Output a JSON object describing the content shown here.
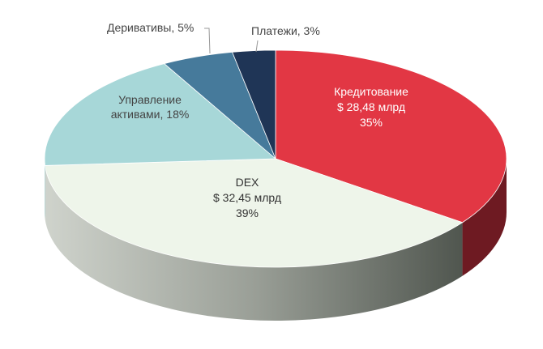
{
  "chart_data": {
    "type": "pie",
    "style": "3d",
    "start": "top, clockwise",
    "slices": [
      {
        "label": "Кредитование",
        "amount": "$ 28,48 млрд",
        "percent": "35%",
        "value": 35,
        "color": "#e23744",
        "side_color": "#6e1a22",
        "label_color": "#ffffff"
      },
      {
        "label": "DEX",
        "amount": "$ 32,45 млрд",
        "percent": "39%",
        "value": 39,
        "color": "#eef5ea",
        "side_color": "#8a8f88",
        "label_color": "#333333"
      },
      {
        "label": "Управление активами, 18%",
        "lines": [
          "Управление",
          "активами, 18%"
        ],
        "value": 18,
        "color": "#a7d7d8",
        "label_color": "#444444"
      },
      {
        "label": "Деривативы, 5%",
        "value": 5,
        "color": "#467a9b",
        "label_color": "#444444"
      },
      {
        "label": "Платежи, 3%",
        "value": 3,
        "color": "#1f3556",
        "label_color": "#444444"
      }
    ]
  }
}
